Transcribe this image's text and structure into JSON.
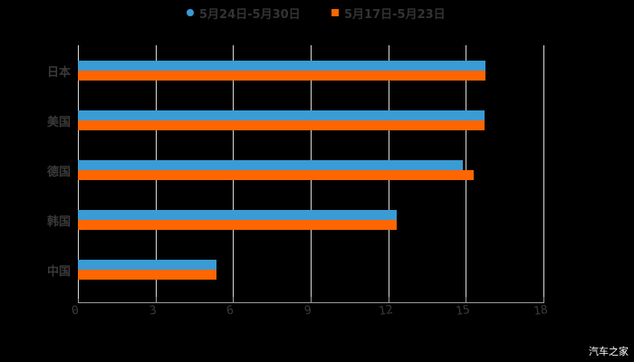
{
  "chart_data": {
    "type": "bar",
    "orientation": "horizontal",
    "title": "",
    "xlabel": "",
    "ylabel": "",
    "categories": [
      "日本",
      "美国",
      "德国",
      "韩国",
      "中国"
    ],
    "series": [
      {
        "name": "5月24日-5月30日",
        "color": "#3a9bd5",
        "values": [
          15.76,
          15.72,
          14.88,
          12.32,
          5.36
        ]
      },
      {
        "name": "5月17日-5月23日",
        "color": "#ff6600",
        "values": [
          15.75,
          15.72,
          15.3,
          12.32,
          5.36
        ]
      }
    ],
    "xlim": [
      0,
      18
    ],
    "xticks": [
      "0",
      "3",
      "6",
      "9",
      "12",
      "15",
      "18"
    ],
    "grid": true,
    "legend_position": "top"
  },
  "legend": {
    "items": [
      {
        "label": "5月24日-5月30日",
        "color": "#3a9bd5",
        "shape": "circle"
      },
      {
        "label": "5月17日-5月23日",
        "color": "#ff6600",
        "shape": "square"
      }
    ]
  },
  "watermark": "汽车之家"
}
